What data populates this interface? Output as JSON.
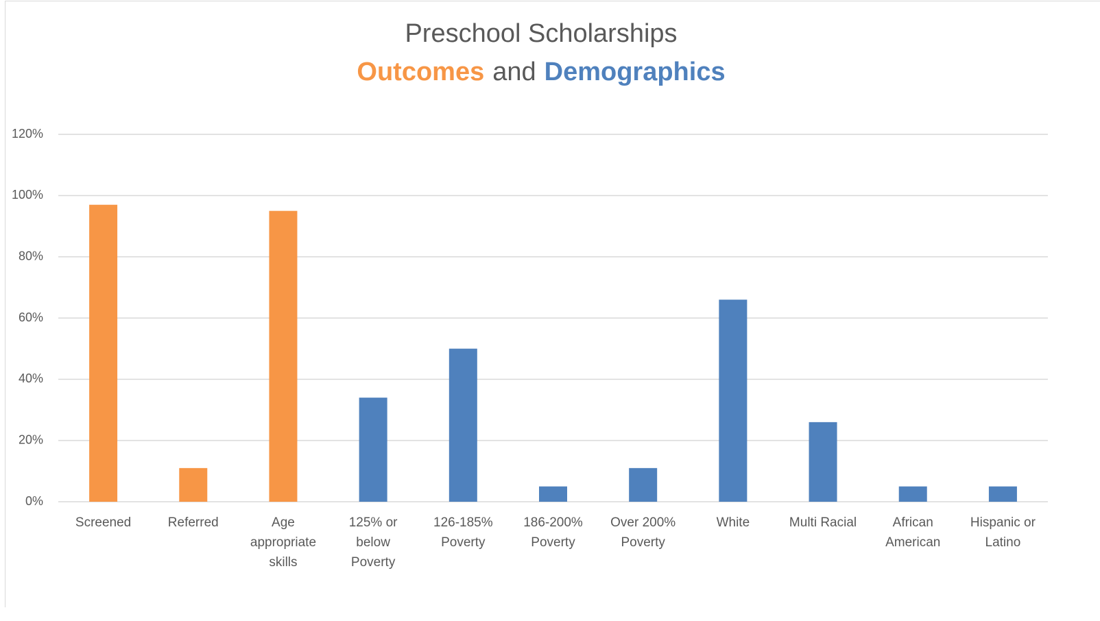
{
  "chart_data": {
    "type": "bar",
    "title": "Preschool Scholarships",
    "subtitle": [
      {
        "text": "Outcomes",
        "color": "#f79646"
      },
      {
        "text": "and",
        "color": "#595959"
      },
      {
        "text": "Demographics",
        "color": "#4f81bd"
      }
    ],
    "categories": [
      "Screened",
      "Referred",
      "Age\nappropriate\nskills",
      "125% or\nbelow\nPoverty",
      "126-185%\nPoverty",
      "186-200%\nPoverty",
      "Over 200%\nPoverty",
      "White",
      "Multi Racial",
      "African\nAmerican",
      "Hispanic or\nLatino"
    ],
    "values": [
      97,
      11,
      95,
      34,
      50,
      5,
      11,
      66,
      26,
      5,
      5
    ],
    "colors": [
      "#f79646",
      "#f79646",
      "#f79646",
      "#4f81bd",
      "#4f81bd",
      "#4f81bd",
      "#4f81bd",
      "#4f81bd",
      "#4f81bd",
      "#4f81bd",
      "#4f81bd"
    ],
    "ylim": [
      0,
      120
    ],
    "yticks": [
      {
        "value": 0,
        "label": "0%"
      },
      {
        "value": 20,
        "label": "20%"
      },
      {
        "value": 40,
        "label": "40%"
      },
      {
        "value": 60,
        "label": "60%"
      },
      {
        "value": 80,
        "label": "80%"
      },
      {
        "value": 100,
        "label": "100%"
      },
      {
        "value": 120,
        "label": "120%"
      }
    ],
    "grid": true
  }
}
